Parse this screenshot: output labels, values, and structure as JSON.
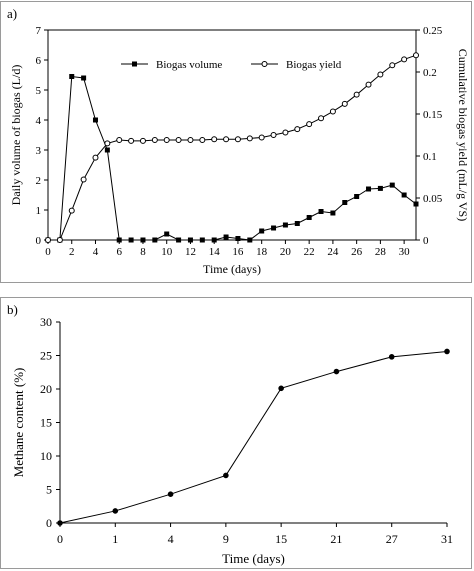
{
  "panels": [
    {
      "label": "a)",
      "chart_data": {
        "type": "line",
        "xlabel": "Time (days)",
        "ylabel_left": "Daily volume of biogas (L/d)",
        "ylabel_right": "Cumulative biogas yield (mL/g VS)",
        "xlim": [
          0,
          31
        ],
        "ylim_left": [
          0,
          7
        ],
        "ylim_right": [
          0,
          0.25
        ],
        "x_ticks": [
          "0",
          "2",
          "4",
          "6",
          "8",
          "10",
          "12",
          "14",
          "16",
          "18",
          "20",
          "22",
          "24",
          "26",
          "28",
          "30"
        ],
        "y_left_ticks": [
          "0",
          "1",
          "2",
          "3",
          "4",
          "5",
          "6",
          "7"
        ],
        "y_right_ticks": [
          "0",
          "0.05",
          "0.1",
          "0.15",
          "0.2",
          "0.25"
        ],
        "legend_position": "top-center",
        "series": [
          {
            "name": "Biogas volume",
            "axis": "left",
            "marker": "filled-square",
            "x": [
              0,
              1,
              2,
              3,
              4,
              5,
              6,
              7,
              8,
              9,
              10,
              11,
              12,
              13,
              14,
              15,
              16,
              17,
              18,
              19,
              20,
              21,
              22,
              23,
              24,
              25,
              26,
              27,
              28,
              29,
              30,
              31
            ],
            "values": [
              0,
              0,
              5.45,
              5.4,
              4.0,
              3.0,
              0,
              0,
              0,
              0,
              0.2,
              0,
              0,
              0,
              0,
              0.1,
              0.05,
              0,
              0.3,
              0.4,
              0.5,
              0.55,
              0.75,
              0.95,
              0.9,
              1.25,
              1.45,
              1.7,
              1.72,
              1.83,
              1.5,
              1.2
            ]
          },
          {
            "name": "Biogas yield",
            "axis": "right",
            "marker": "open-circle",
            "x": [
              0,
              1,
              2,
              3,
              4,
              5,
              6,
              7,
              8,
              9,
              10,
              11,
              12,
              13,
              14,
              15,
              16,
              17,
              18,
              19,
              20,
              21,
              22,
              23,
              24,
              25,
              26,
              27,
              28,
              29,
              30,
              31
            ],
            "values": [
              0,
              0,
              0.035,
              0.072,
              0.098,
              0.115,
              0.119,
              0.118,
              0.118,
              0.119,
              0.119,
              0.119,
              0.119,
              0.119,
              0.12,
              0.12,
              0.12,
              0.121,
              0.122,
              0.125,
              0.128,
              0.132,
              0.138,
              0.145,
              0.153,
              0.162,
              0.173,
              0.185,
              0.197,
              0.208,
              0.215,
              0.22
            ]
          }
        ]
      }
    },
    {
      "label": "b)",
      "chart_data": {
        "type": "line",
        "xlabel": "Time (days)",
        "ylabel": "Methane content (%)",
        "categories": [
          "0",
          "1",
          "4",
          "9",
          "15",
          "21",
          "27",
          "31"
        ],
        "ylim": [
          0,
          30
        ],
        "y_ticks": [
          "0",
          "5",
          "10",
          "15",
          "20",
          "25",
          "30"
        ],
        "series": [
          {
            "marker": "filled-circle",
            "values": [
              0,
              1.8,
              4.3,
              7.1,
              20.1,
              22.6,
              24.8,
              25.6
            ]
          }
        ]
      }
    }
  ]
}
